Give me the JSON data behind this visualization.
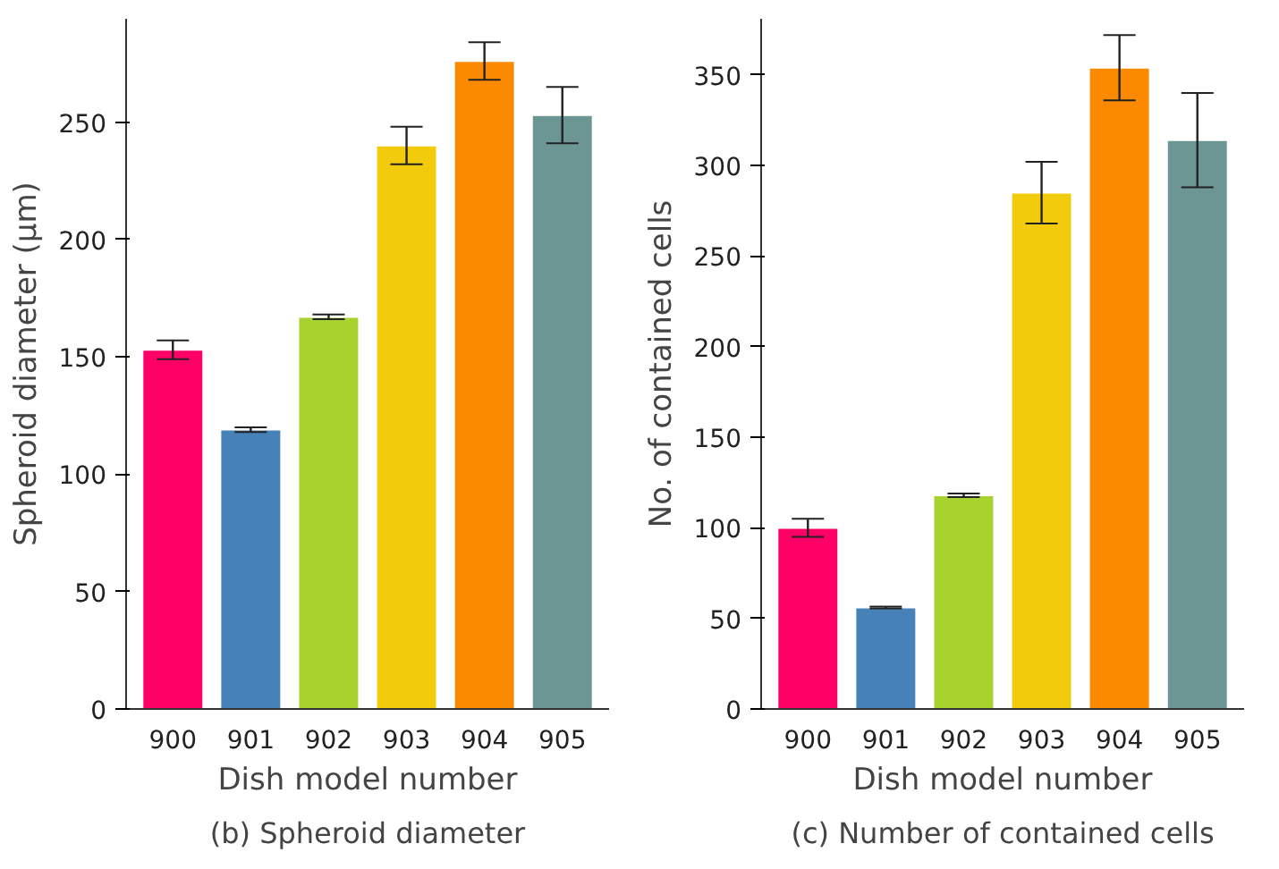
{
  "chart_data": [
    {
      "type": "bar",
      "title": "(b) Spheroid diameter",
      "xlabel": "Dish model number",
      "ylabel": "Spheroid diameter (μm)",
      "categories": [
        "900",
        "901",
        "902",
        "903",
        "904",
        "905"
      ],
      "values": [
        153,
        119,
        167,
        240,
        276,
        253
      ],
      "errors": [
        4,
        1,
        1,
        8,
        8,
        12
      ],
      "colors": [
        "#ff0066",
        "#4682b8",
        "#a8d22e",
        "#f2cb0c",
        "#fb8a00",
        "#6b9694"
      ],
      "ylim": [
        0,
        294
      ],
      "yticks": [
        0,
        50,
        100,
        150,
        200,
        250
      ],
      "grid": false
    },
    {
      "type": "bar",
      "title": "(c) Number of contained cells",
      "xlabel": "Dish model number",
      "ylabel": "No. of contained cells",
      "categories": [
        "900",
        "901",
        "902",
        "903",
        "904",
        "905"
      ],
      "values": [
        100,
        56,
        118,
        285,
        354,
        314
      ],
      "errors": [
        5,
        0.5,
        1,
        17,
        18,
        26
      ],
      "colors": [
        "#ff0066",
        "#4682b8",
        "#a8d22e",
        "#f2cb0c",
        "#fb8a00",
        "#6b9694"
      ],
      "ylim": [
        0,
        381
      ],
      "yticks": [
        0,
        50,
        100,
        150,
        200,
        250,
        300,
        350
      ],
      "grid": false
    }
  ]
}
